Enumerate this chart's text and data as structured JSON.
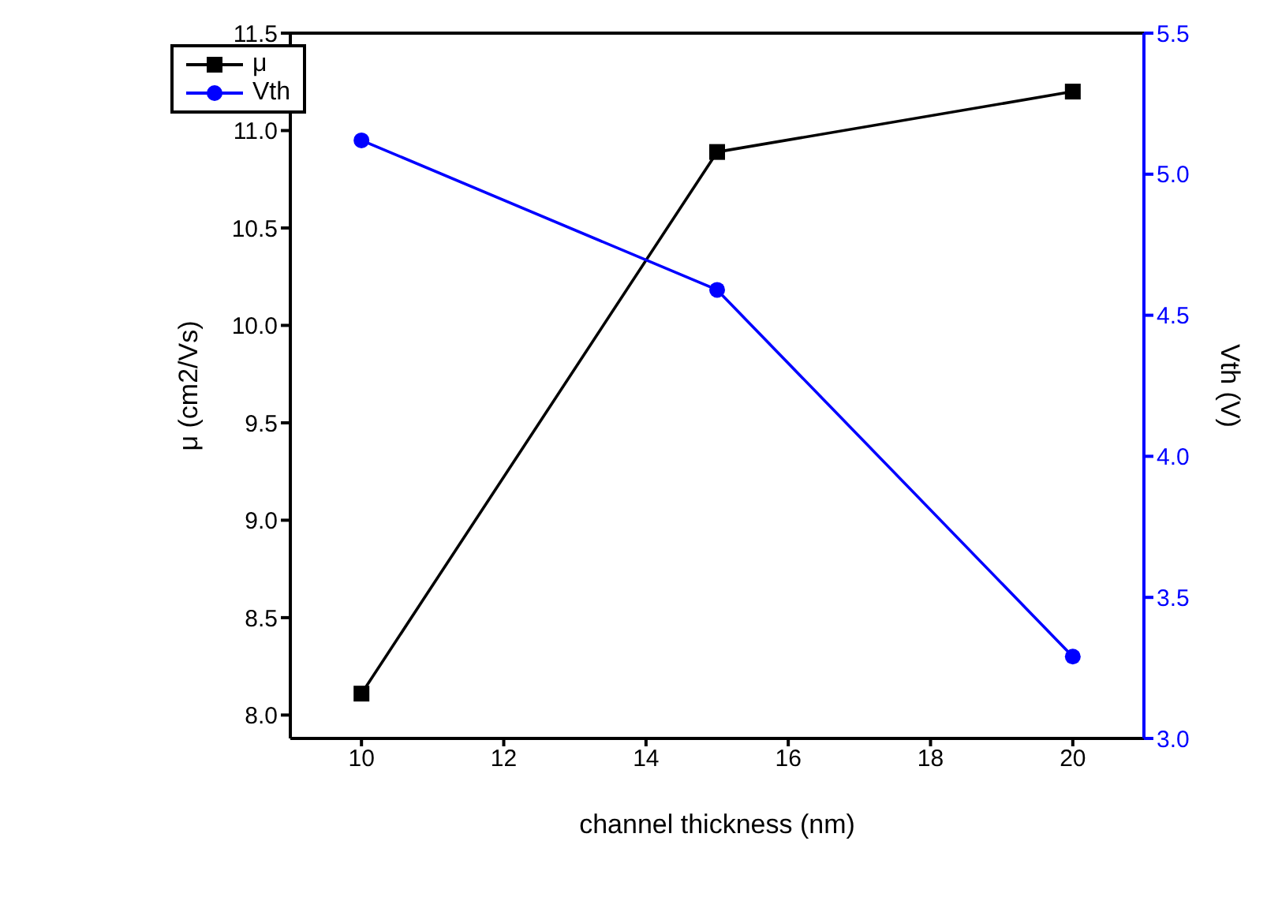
{
  "chart_data": {
    "type": "line",
    "xlabel": "channel thickness (nm)",
    "ylabel": "μ (cm2/Vs)",
    "y2label": "Vth (V)",
    "x": [
      10,
      15,
      20
    ],
    "series": [
      {
        "name": "μ",
        "color": "#000000",
        "values": [
          8.11,
          10.89,
          11.2
        ],
        "marker": "square"
      },
      {
        "name": "Vth",
        "color": "#0000ff",
        "values": [
          5.12,
          4.59,
          3.29
        ],
        "marker": "circle",
        "axis": "y2"
      }
    ],
    "xlim": [
      9,
      21
    ],
    "xticks": [
      10,
      12,
      14,
      16,
      18,
      20
    ],
    "ylim": [
      7.88,
      11.5
    ],
    "yticks": [
      {
        "value": 8,
        "label": "8.0"
      },
      8.5,
      {
        "value": 9,
        "label": "9.0"
      },
      9.5,
      {
        "value": 10,
        "label": "10.0"
      },
      10.5,
      {
        "value": 11,
        "label": "11.0"
      },
      11.5
    ],
    "y2lim": [
      3.0,
      5.5
    ],
    "y2ticks": [
      {
        "value": 3,
        "label": "3.0"
      },
      3.5,
      {
        "value": 4,
        "label": "4.0"
      },
      4.5,
      {
        "value": 5,
        "label": "5.0"
      },
      5.5
    ],
    "grid": false,
    "legend": "top left"
  }
}
